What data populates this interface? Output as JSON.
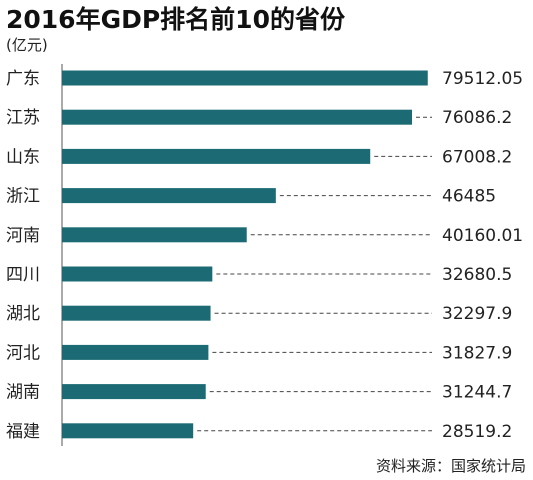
{
  "chart_data": {
    "type": "bar",
    "orientation": "horizontal",
    "title": "2016年GDP排名前10的省份",
    "unit": "(亿元)",
    "categories": [
      "广东",
      "江苏",
      "山东",
      "浙江",
      "河南",
      "四川",
      "湖北",
      "河北",
      "湖南",
      "福建"
    ],
    "values": [
      79512.05,
      76086.2,
      67008.2,
      46485,
      40160.01,
      32680.5,
      32297.9,
      31827.9,
      31244.7,
      28519.2
    ],
    "value_labels": [
      "79512.05",
      "76086.2",
      "67008.2",
      "46485",
      "40160.01",
      "32680.5",
      "32297.9",
      "31827.9",
      "31244.7",
      "28519.2"
    ],
    "xlim": [
      0,
      80000
    ],
    "grid": false,
    "legend": "none",
    "source": "资料来源：国家统计局",
    "bar_color": "#1c6b74"
  }
}
